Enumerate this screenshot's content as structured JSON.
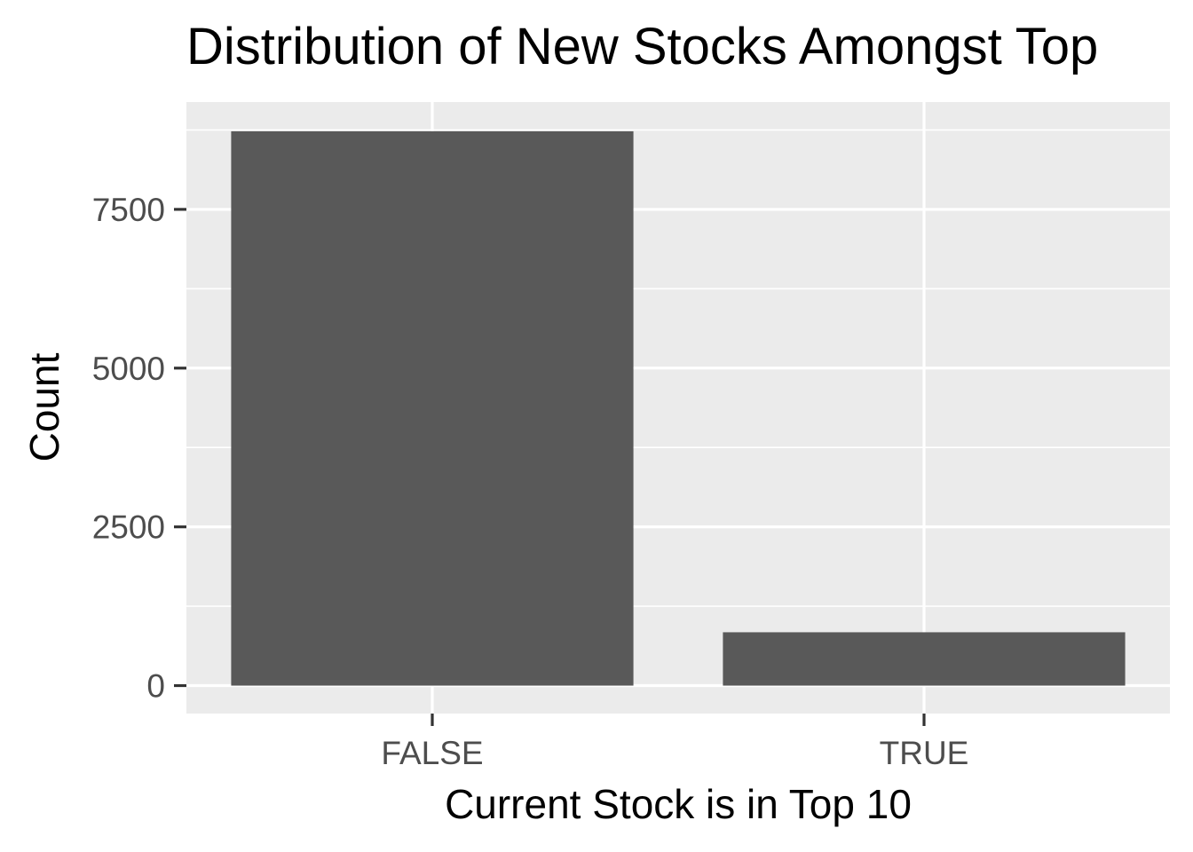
{
  "chart_data": {
    "type": "bar",
    "title": "Distribution of New Stocks Amongst Top",
    "xlabel": "Current Stock is in Top 10",
    "ylabel": "Count",
    "categories": [
      "FALSE",
      "TRUE"
    ],
    "values": [
      8730,
      840
    ],
    "ylim": [
      -440,
      9190
    ],
    "y_ticks": [
      0,
      2500,
      5000,
      7500
    ],
    "y_tick_labels": [
      "0",
      "2500",
      "5000",
      "7500"
    ],
    "grid": true,
    "colors": {
      "bar": "#595959",
      "panel": "#ebebeb",
      "grid": "#ffffff",
      "tick_text": "#4d4d4d",
      "tick_mark": "#333333"
    }
  }
}
